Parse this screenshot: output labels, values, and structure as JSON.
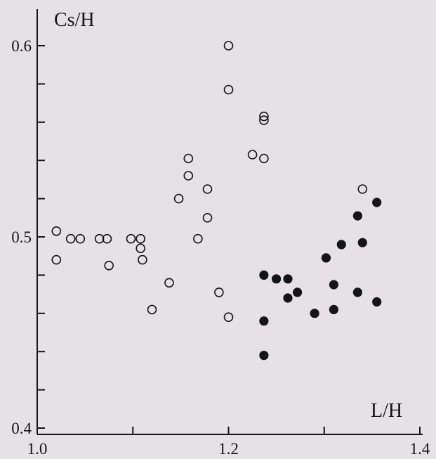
{
  "chart_data": {
    "type": "scatter",
    "title": "",
    "xlabel": "L/H",
    "ylabel": "Cs/H",
    "xlim": [
      1.0,
      1.4
    ],
    "ylim": [
      0.4,
      0.62
    ],
    "x_ticks": [
      1.0,
      1.1,
      1.2,
      1.3,
      1.4
    ],
    "x_tick_labels": [
      "1.0",
      "",
      "1.2",
      "",
      "1.4"
    ],
    "y_ticks": [
      0.4,
      0.42,
      0.44,
      0.46,
      0.48,
      0.5,
      0.52,
      0.54,
      0.56,
      0.58,
      0.6
    ],
    "y_tick_labels": [
      "0.4",
      "",
      "",
      "",
      "",
      "0.5",
      "",
      "",
      "",
      "",
      "0.6"
    ],
    "grid": false,
    "legend": "none",
    "colors": {
      "background": "#e6e1e4",
      "ink": "#151515"
    },
    "series": [
      {
        "marker": "open-circle",
        "points": [
          {
            "x": 1.02,
            "y": 0.503
          },
          {
            "x": 1.02,
            "y": 0.488
          },
          {
            "x": 1.035,
            "y": 0.499
          },
          {
            "x": 1.045,
            "y": 0.499
          },
          {
            "x": 1.065,
            "y": 0.499
          },
          {
            "x": 1.073,
            "y": 0.499
          },
          {
            "x": 1.075,
            "y": 0.485
          },
          {
            "x": 1.098,
            "y": 0.499
          },
          {
            "x": 1.108,
            "y": 0.499
          },
          {
            "x": 1.108,
            "y": 0.494
          },
          {
            "x": 1.11,
            "y": 0.488
          },
          {
            "x": 1.12,
            "y": 0.462
          },
          {
            "x": 1.138,
            "y": 0.476
          },
          {
            "x": 1.148,
            "y": 0.52
          },
          {
            "x": 1.158,
            "y": 0.541
          },
          {
            "x": 1.158,
            "y": 0.532
          },
          {
            "x": 1.168,
            "y": 0.499
          },
          {
            "x": 1.178,
            "y": 0.525
          },
          {
            "x": 1.178,
            "y": 0.51
          },
          {
            "x": 1.19,
            "y": 0.471
          },
          {
            "x": 1.2,
            "y": 0.6
          },
          {
            "x": 1.2,
            "y": 0.577
          },
          {
            "x": 1.2,
            "y": 0.458
          },
          {
            "x": 1.225,
            "y": 0.543
          },
          {
            "x": 1.237,
            "y": 0.563
          },
          {
            "x": 1.237,
            "y": 0.561
          },
          {
            "x": 1.237,
            "y": 0.541
          },
          {
            "x": 1.34,
            "y": 0.525
          }
        ]
      },
      {
        "marker": "filled-circle",
        "points": [
          {
            "x": 1.237,
            "y": 0.48
          },
          {
            "x": 1.237,
            "y": 0.456
          },
          {
            "x": 1.237,
            "y": 0.438
          },
          {
            "x": 1.25,
            "y": 0.478
          },
          {
            "x": 1.262,
            "y": 0.478
          },
          {
            "x": 1.262,
            "y": 0.468
          },
          {
            "x": 1.272,
            "y": 0.471
          },
          {
            "x": 1.29,
            "y": 0.46
          },
          {
            "x": 1.302,
            "y": 0.489
          },
          {
            "x": 1.31,
            "y": 0.475
          },
          {
            "x": 1.31,
            "y": 0.462
          },
          {
            "x": 1.318,
            "y": 0.496
          },
          {
            "x": 1.335,
            "y": 0.511
          },
          {
            "x": 1.335,
            "y": 0.471
          },
          {
            "x": 1.34,
            "y": 0.497
          },
          {
            "x": 1.355,
            "y": 0.518
          },
          {
            "x": 1.355,
            "y": 0.466
          }
        ]
      }
    ]
  }
}
